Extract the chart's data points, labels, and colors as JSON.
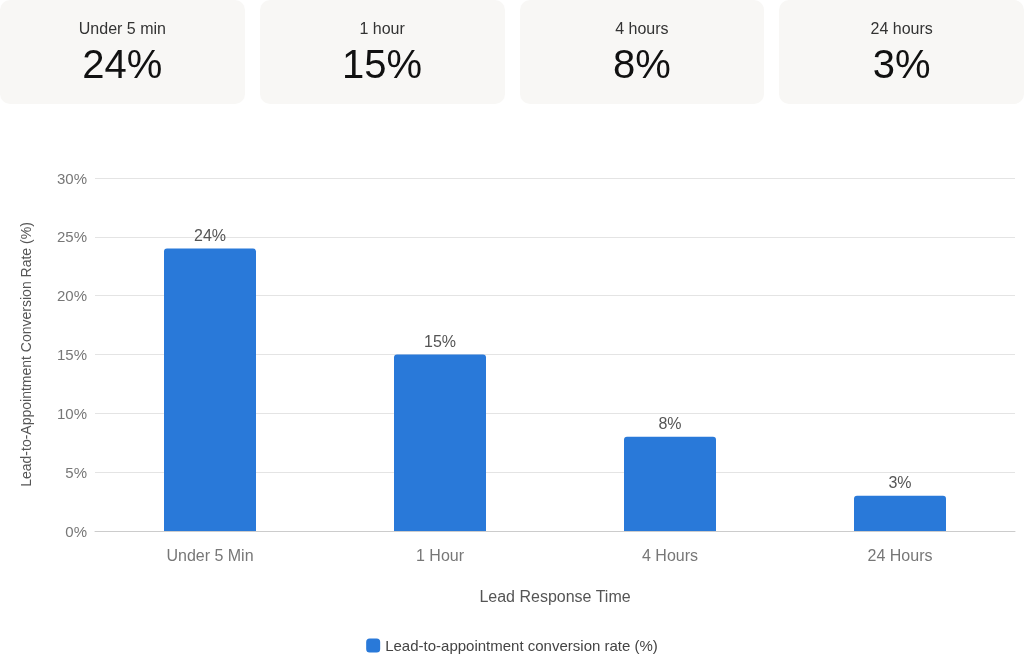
{
  "chart_data": [
    {
      "type": "other",
      "categories": [
        "Under 5 min",
        "1 hour",
        "4 hours",
        "24 hours"
      ],
      "value_labels": [
        "24%",
        "15%",
        "8%",
        "3%"
      ]
    },
    {
      "type": "bar",
      "xlabel": "Lead Response Time",
      "ylabel": "Lead-to-Appointment Conversion Rate (%)",
      "categories": [
        "Under 5 Min",
        "1 Hour",
        "4 Hours",
        "24 Hours"
      ],
      "series": [
        {
          "name": "Lead-to-appointment conversion rate (%)",
          "color": "#2979d9",
          "values": [
            24,
            15,
            8,
            3
          ],
          "value_labels": [
            "24%",
            "15%",
            "8%",
            "3%"
          ]
        }
      ],
      "ylim": [
        0,
        30
      ],
      "yticks": [
        {
          "value": 0,
          "label": "0%"
        },
        {
          "value": 5,
          "label": "5%"
        },
        {
          "value": 10,
          "label": "10%"
        },
        {
          "value": 15,
          "label": "15%"
        },
        {
          "value": 20,
          "label": "20%"
        },
        {
          "value": 25,
          "label": "25%"
        },
        {
          "value": 30,
          "label": "30%"
        }
      ],
      "grid": "y",
      "legend": "bottom"
    }
  ]
}
